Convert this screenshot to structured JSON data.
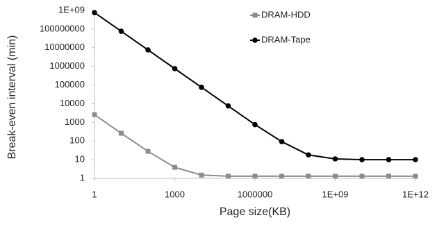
{
  "chart_data": {
    "type": "line",
    "xlabel": "Page size(KB)",
    "ylabel": "Break-even interval (min)",
    "xscale": "log",
    "yscale": "log",
    "x": [
      1,
      10,
      100,
      1000,
      10000,
      100000,
      1000000,
      10000000,
      100000000,
      1000000000,
      10000000000,
      100000000000,
      1000000000000
    ],
    "xlim": [
      1,
      1000000000000
    ],
    "xticks": [
      1,
      1000,
      1000000,
      {
        "value": 1000000000,
        "label": "1E+09"
      },
      {
        "value": 1000000000000,
        "label": "1E+12"
      }
    ],
    "ylim": [
      1,
      1000000000
    ],
    "yticks": [
      1,
      10,
      100,
      1000,
      10000,
      100000,
      1000000,
      10000000,
      100000000,
      {
        "value": 1000000000,
        "label": "1E+09"
      }
    ],
    "grid": false,
    "legend": "upper right",
    "series": [
      {
        "name": "DRAM-HDD",
        "color": "#8c8c8c",
        "marker": "square",
        "values": [
          2600,
          260,
          28,
          3.9,
          1.5,
          1.3,
          1.3,
          1.3,
          1.3,
          1.3,
          1.3,
          1.3,
          1.3
        ]
      },
      {
        "name": "DRAM-Tape",
        "color": "#000000",
        "marker": "circle",
        "values": [
          760000000,
          76000000,
          7600000,
          760000,
          76000,
          7600,
          760,
          93,
          18,
          11,
          10,
          10,
          10
        ]
      }
    ]
  }
}
